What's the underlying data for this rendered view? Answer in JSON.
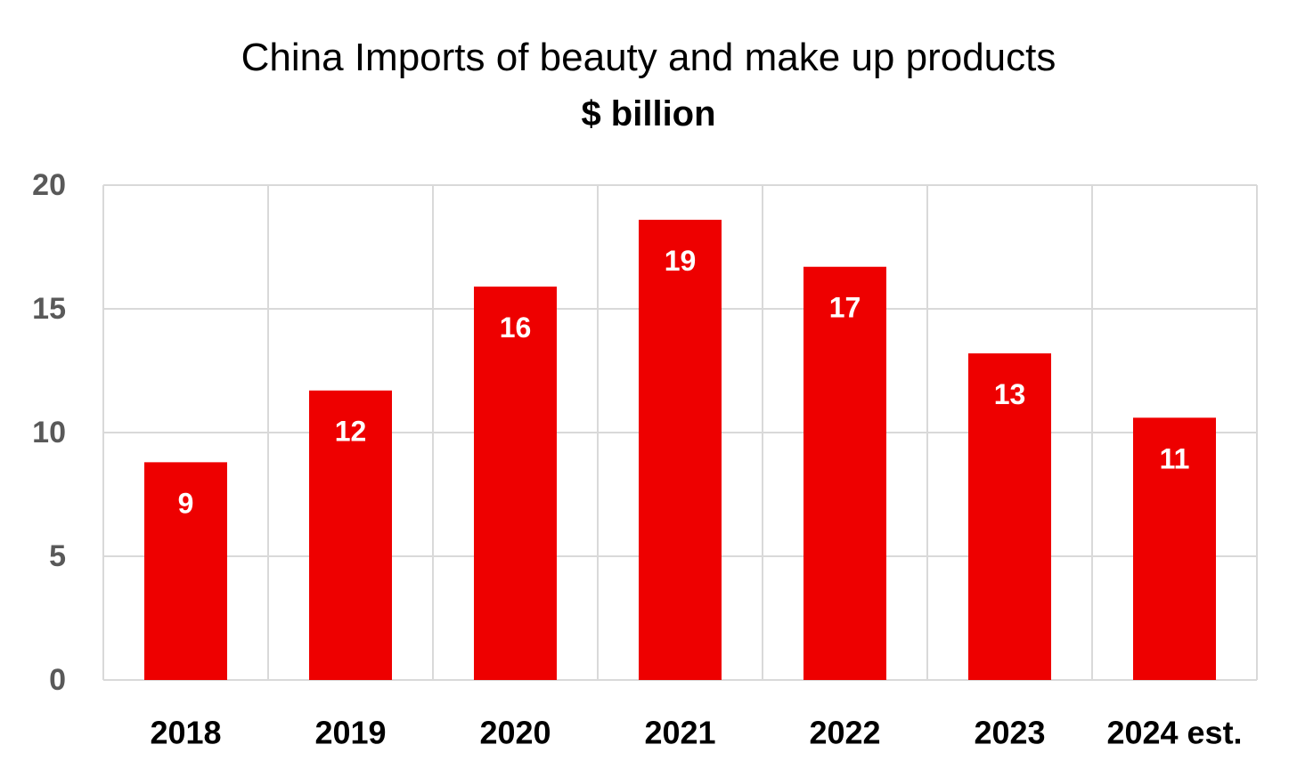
{
  "chart_data": {
    "type": "bar",
    "title": "China Imports of beauty and make up products",
    "subtitle": "$ billion",
    "categories": [
      "2018",
      "2019",
      "2020",
      "2021",
      "2022",
      "2023",
      "2024 est."
    ],
    "values": [
      8.8,
      11.7,
      15.9,
      18.6,
      16.7,
      13.2,
      10.6
    ],
    "data_labels": [
      "9",
      "12",
      "16",
      "19",
      "17",
      "13",
      "11"
    ],
    "ylim": [
      0,
      20
    ],
    "yticks": [
      0,
      5,
      10,
      15,
      20
    ],
    "ytick_labels": [
      "0",
      "5",
      "10",
      "15",
      "20"
    ],
    "grid": true,
    "legend": "none",
    "bar_color": "#EE0000",
    "grid_color": "#D9D9D9"
  }
}
